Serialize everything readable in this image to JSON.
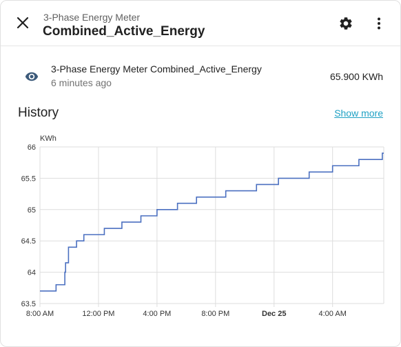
{
  "header": {
    "subtitle": "3-Phase Energy Meter",
    "title": "Combined_Active_Energy",
    "close_icon": "close-icon",
    "settings_icon": "gear-icon",
    "more_icon": "more-vert-icon"
  },
  "entity": {
    "icon": "eye-icon",
    "name": "3-Phase Energy Meter Combined_Active_Energy",
    "last_changed": "6 minutes ago",
    "value": "65.900 KWh"
  },
  "history": {
    "title": "History",
    "show_more": "Show more"
  },
  "colors": {
    "line": "#4a6fc0",
    "link": "#1fa1c4",
    "icon": "#3c5a7a"
  },
  "chart_data": {
    "type": "line",
    "ylabel": "KWh",
    "ylim": [
      63.5,
      66
    ],
    "yticks": [
      "63.5",
      "64",
      "64.5",
      "65",
      "65.5",
      "66"
    ],
    "xticks": [
      {
        "label": "8:00 AM",
        "h": 0,
        "bold": false
      },
      {
        "label": "12:00 PM",
        "h": 4,
        "bold": false
      },
      {
        "label": "4:00 PM",
        "h": 8,
        "bold": false
      },
      {
        "label": "8:00 PM",
        "h": 12,
        "bold": false
      },
      {
        "label": "Dec 25",
        "h": 16,
        "bold": true
      },
      {
        "label": "4:00 AM",
        "h": 20,
        "bold": false
      }
    ],
    "xlim_hours": [
      0,
      23.5
    ],
    "step": true,
    "series": [
      {
        "x": [
          0,
          1.1,
          1.7,
          1.75,
          1.95,
          2.5,
          2.55,
          3.0,
          4.4,
          5.6,
          6.9,
          8.0,
          9.4,
          10.7,
          12.7,
          14.8,
          16.3,
          18.4,
          20.0,
          21.8,
          23.4
        ],
        "y": [
          63.7,
          63.8,
          64.0,
          64.15,
          64.4,
          64.5,
          64.5,
          64.6,
          64.7,
          64.8,
          64.9,
          65.0,
          65.1,
          65.2,
          65.3,
          65.4,
          65.5,
          65.6,
          65.7,
          65.8,
          65.9
        ]
      }
    ]
  }
}
